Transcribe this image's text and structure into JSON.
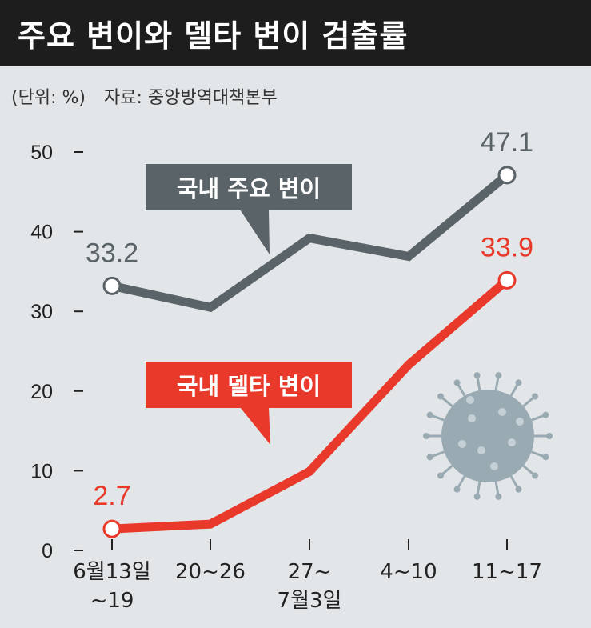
{
  "header": {
    "title": "주요 변이와 델타 변이 검출률",
    "unit": "(단위: %)",
    "source": "자료: 중앙방역대책본부"
  },
  "chart_data": {
    "type": "line",
    "categories": [
      "6월13일\n~19",
      "20~26",
      "27~\n7월3일",
      "4~10",
      "11~17"
    ],
    "ylim": [
      0,
      50
    ],
    "yticks": [
      0,
      10,
      20,
      30,
      40,
      50
    ],
    "grid": false,
    "series": [
      {
        "name": "국내 주요 변이",
        "color": "#5a6468",
        "values": [
          33.2,
          30.5,
          39.2,
          36.9,
          47.1
        ],
        "labels": {
          "0": "33.2",
          "4": "47.1"
        }
      },
      {
        "name": "국내 델타 변이",
        "color": "#e8392b",
        "values": [
          2.7,
          3.3,
          9.9,
          23.3,
          33.9
        ],
        "labels": {
          "0": "2.7",
          "4": "33.9"
        }
      }
    ]
  },
  "colors": {
    "background": "#e3e6e8",
    "title_bar": "#1d1d1d",
    "virus_icon": "#9aaab3"
  },
  "icons": [
    "virus-icon"
  ]
}
